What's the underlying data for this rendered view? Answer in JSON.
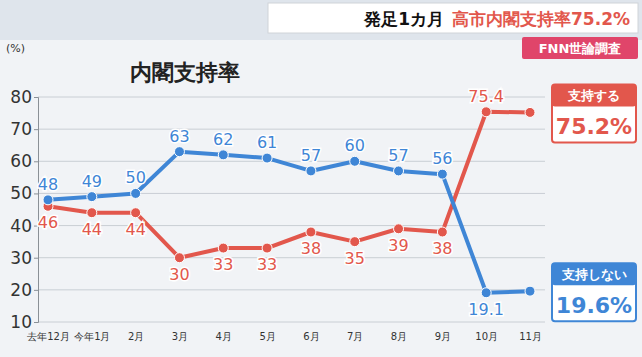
{
  "chart_data": {
    "type": "line",
    "title_prefix": "発足1カ月",
    "title": "高市内閣支持率75.2%",
    "source": "FNN世論調査",
    "label": "内閣支持率",
    "y_unit": "(%)",
    "categories": [
      "去年12月",
      "今年1月",
      "2月",
      "3月",
      "4月",
      "5月",
      "6月",
      "7月",
      "8月",
      "9月",
      "10月",
      "11月"
    ],
    "series": [
      {
        "name": "支持する",
        "color": "#e2574c",
        "values": [
          46,
          44,
          44,
          30,
          33,
          33,
          38,
          35,
          39,
          38,
          75.4,
          75.2
        ],
        "value_labels": [
          "46",
          "44",
          "44",
          "30",
          "33",
          "33",
          "38",
          "35",
          "39",
          "38",
          "75.4",
          null
        ],
        "end_label": "75.2%"
      },
      {
        "name": "支持しない",
        "color": "#3f86d6",
        "values": [
          48,
          49,
          50,
          63,
          62,
          61,
          57,
          60,
          57,
          56,
          19.1,
          19.6
        ],
        "value_labels": [
          "48",
          "49",
          "50",
          "63",
          "62",
          "61",
          "57",
          "60",
          "57",
          "56",
          "19.1",
          null
        ],
        "end_label": "19.6%"
      }
    ],
    "ylim": [
      10,
      80
    ],
    "yticks": [
      10,
      20,
      30,
      40,
      50,
      60,
      70,
      80
    ],
    "grid": true,
    "marker": "circle",
    "data_labels": true,
    "legend": "right"
  }
}
